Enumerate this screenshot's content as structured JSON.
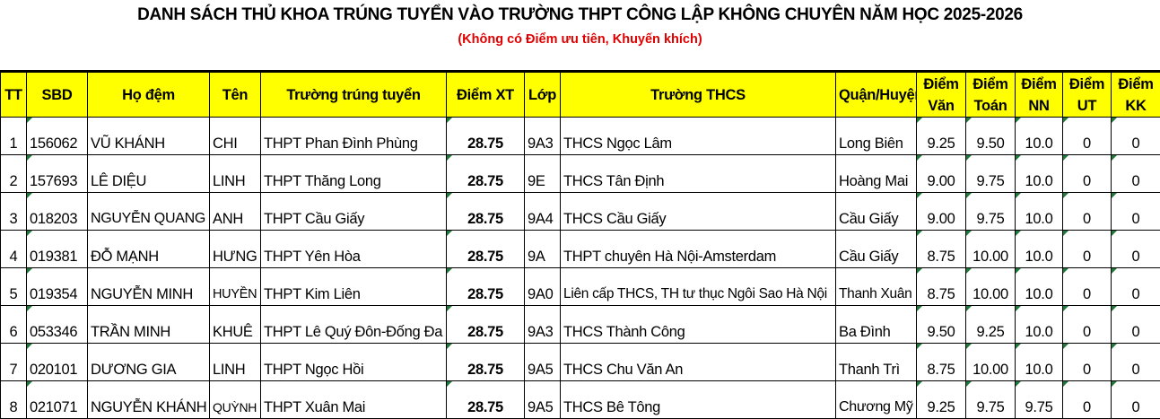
{
  "title": "DANH SÁCH THỦ KHOA TRÚNG TUYỂN VÀO TRƯỜNG THPT CÔNG LẬP KHÔNG CHUYÊN NĂM HỌC 2025-2026",
  "subtitle": "(Không có Điểm ưu tiên, Khuyến khích)",
  "colors": {
    "header_bg": "#ffff00",
    "subtitle": "#e00000"
  },
  "columns": [
    "TT",
    "SBD",
    "Họ đệm",
    "Tên",
    "Trường trúng tuyển",
    "Điểm XT",
    "Lớp",
    "Trường THCS",
    "Quận/Huyện",
    "Điểm Văn",
    "Điểm Toán",
    "Điểm NN",
    "Điểm UT",
    "Điểm KK"
  ],
  "rows": [
    [
      "1",
      "156062",
      "VŨ KHÁNH",
      "CHI",
      "THPT Phan Đình Phùng",
      "28.75",
      "9A3",
      "THCS Ngọc Lâm",
      "Long Biên",
      "9.25",
      "9.50",
      "10.0",
      "0",
      "0"
    ],
    [
      "2",
      "157693",
      "LÊ DIỆU",
      "LINH",
      "THPT Thăng Long",
      "28.75",
      "9E",
      "THCS Tân Định",
      "Hoàng Mai",
      "9.00",
      "9.75",
      "10.0",
      "0",
      "0"
    ],
    [
      "3",
      "018203",
      "NGUYỄN QUANG",
      "ANH",
      "THPT Cầu Giấy",
      "28.75",
      "9A4",
      "THCS Cầu Giấy",
      "Cầu Giấy",
      "9.00",
      "9.75",
      "10.0",
      "0",
      "0"
    ],
    [
      "4",
      "019381",
      "ĐỖ MẠNH",
      "HƯNG",
      "THPT Yên Hòa",
      "28.75",
      "9A",
      "THPT chuyên Hà Nội-Amsterdam",
      "Cầu Giấy",
      "8.75",
      "10.00",
      "10.0",
      "0",
      "0"
    ],
    [
      "5",
      "019354",
      "NGUYỄN MINH",
      "HUYỀN",
      "THPT Kim Liên",
      "28.75",
      "9A0",
      "Liên cấp THCS, TH tư thục Ngôi Sao Hà Nội",
      "Thanh Xuân",
      "8.75",
      "10.00",
      "10.0",
      "0",
      "0"
    ],
    [
      "6",
      "053346",
      "TRẦN MINH",
      "KHUÊ",
      "THPT Lê Quý Đôn-Đống Đa",
      "28.75",
      "9A3",
      "THCS Thành Công",
      "Ba Đình",
      "9.50",
      "9.25",
      "10.0",
      "0",
      "0"
    ],
    [
      "7",
      "020101",
      "DƯƠNG GIA",
      "LINH",
      "THPT Ngọc Hồi",
      "28.75",
      "9A5",
      "THCS Chu Văn An",
      "Thanh Trì",
      "8.75",
      "10.00",
      "10.0",
      "0",
      "0"
    ],
    [
      "8",
      "021071",
      "NGUYỄN KHÁNH",
      "QUỲNH",
      "THPT Xuân Mai",
      "28.75",
      "9A5",
      "THCS Bê Tông",
      "Chương Mỹ",
      "9.25",
      "9.75",
      "9.75",
      "0",
      "0"
    ]
  ]
}
